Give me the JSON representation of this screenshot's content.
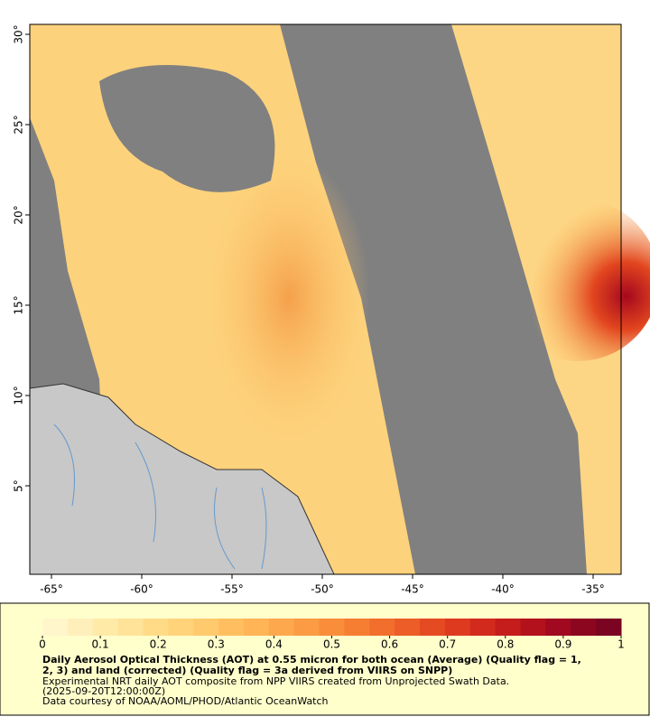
{
  "map": {
    "lon_lim": [
      -66.2,
      -33.45
    ],
    "lat_lim": [
      0.1,
      30.55
    ],
    "lon_ticks": [
      {
        "value": -65,
        "label": "-65°"
      },
      {
        "value": -60,
        "label": "-60°"
      },
      {
        "value": -55,
        "label": "-55°"
      },
      {
        "value": -50,
        "label": "-50°"
      },
      {
        "value": -45,
        "label": "-45°"
      },
      {
        "value": -40,
        "label": "-40°"
      },
      {
        "value": -35,
        "label": "-35°"
      }
    ],
    "lat_ticks": [
      {
        "value": 30,
        "label": "30°"
      },
      {
        "value": 25,
        "label": "25°"
      },
      {
        "value": 20,
        "label": "20°"
      },
      {
        "value": 15,
        "label": "15°"
      },
      {
        "value": 10,
        "label": "10°"
      },
      {
        "value": 5,
        "label": "5°"
      }
    ]
  },
  "colorbar": {
    "lim": [
      0,
      1
    ],
    "ticks": [
      0,
      0.1,
      0.2,
      0.3,
      0.4,
      0.5,
      0.6,
      0.7,
      0.8,
      0.9,
      1
    ],
    "colors": [
      "#fff6cc",
      "#fff0bb",
      "#ffeaa8",
      "#ffe398",
      "#ffdb88",
      "#ffd37a",
      "#ffca6e",
      "#ffbf60",
      "#ffb455",
      "#fda84c",
      "#fb9b43",
      "#f98d3a",
      "#f67e33",
      "#f26e2d",
      "#ec5d27",
      "#e54b22",
      "#dd3a1f",
      "#d22a1c",
      "#c41d1b",
      "#b3111c",
      "#a0091f",
      "#8c0620",
      "#7a0421"
    ]
  },
  "caption": {
    "title_lines": [
      "Daily Aerosol Optical Thickness (AOT) at 0.55 micron for both ocean (Average) (Quality flag = 1,",
      "2, 3) and land (corrected) (Quality flag = 3a derived from VIIRS on SNPP)"
    ],
    "lines": [
      "Experimental NRT daily AOT composite from NPP VIIRS created from Unprojected Swath Data.",
      "(2025-09-20T12:00:00Z)",
      "Data courtesy of NOAA/AOML/PHOD/Atlantic OceanWatch"
    ]
  }
}
